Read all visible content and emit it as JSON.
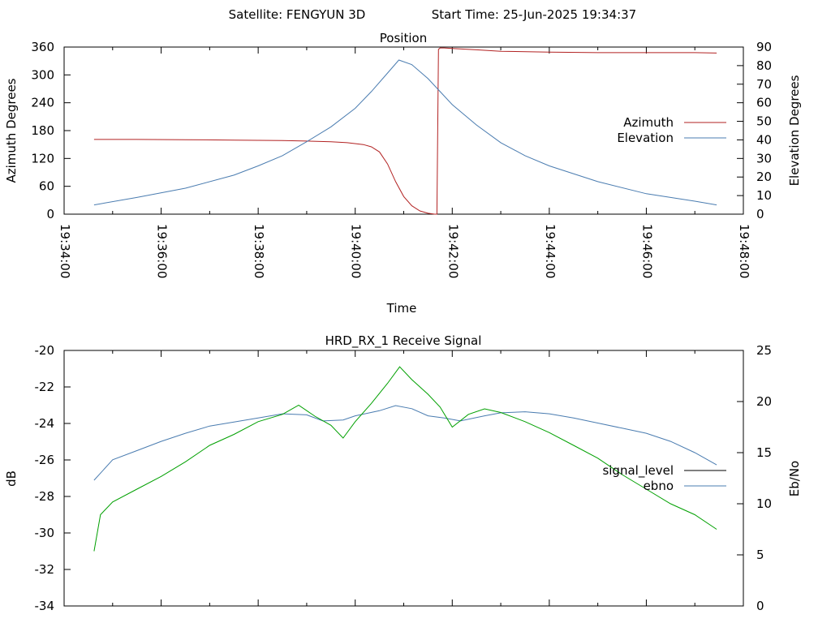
{
  "header": {
    "satellite_label": "Satellite: FENGYUN 3D",
    "start_time_label": "Start Time: 25-Jun-2025 19:34:37"
  },
  "chart_data": [
    {
      "type": "line",
      "title": "Position",
      "xlabel": "Time",
      "ylabel": "Azimuth Degrees",
      "y2label": "Elevation Degrees",
      "xlim": [
        "19:34:00",
        "19:48:00"
      ],
      "ylim": [
        0,
        360
      ],
      "y2lim": [
        0,
        90
      ],
      "grid": false,
      "legend_position": "right",
      "x_ticks": [
        "19:34:00",
        "19:36:00",
        "19:38:00",
        "19:40:00",
        "19:42:00",
        "19:44:00",
        "19:46:00",
        "19:48:00"
      ],
      "y_ticks": [
        0,
        60,
        120,
        180,
        240,
        300,
        360
      ],
      "y2_ticks": [
        0,
        10,
        20,
        30,
        40,
        50,
        60,
        70,
        80,
        90
      ],
      "series": [
        {
          "name": "Azimuth",
          "axis": "y",
          "color": "#b22222",
          "x": [
            "19:34:37",
            "19:35:30",
            "19:36:30",
            "19:37:30",
            "19:38:30",
            "19:39:00",
            "19:39:30",
            "19:39:50",
            "19:40:10",
            "19:40:20",
            "19:40:30",
            "19:40:40",
            "19:40:50",
            "19:41:00",
            "19:41:10",
            "19:41:20",
            "19:41:30",
            "19:41:38",
            "19:41:41",
            "19:41:43",
            "19:41:45",
            "19:41:50",
            "19:42:00",
            "19:42:30",
            "19:43:00",
            "19:44:00",
            "19:45:00",
            "19:46:00",
            "19:47:00",
            "19:47:27"
          ],
          "y": [
            161,
            161,
            160.5,
            159.5,
            158.5,
            157.5,
            156,
            154,
            150,
            145,
            134,
            108,
            70,
            38,
            18,
            7,
            2,
            0,
            0,
            355,
            358,
            358,
            357,
            354,
            351,
            349,
            348,
            348,
            348,
            347
          ]
        },
        {
          "name": "Elevation",
          "axis": "y2",
          "color": "#4a7cb0",
          "x": [
            "19:34:37",
            "19:35:30",
            "19:36:30",
            "19:37:30",
            "19:38:00",
            "19:38:30",
            "19:39:00",
            "19:39:30",
            "19:40:00",
            "19:40:20",
            "19:40:40",
            "19:40:54",
            "19:41:10",
            "19:41:30",
            "19:41:45",
            "19:42:00",
            "19:42:30",
            "19:43:00",
            "19:43:30",
            "19:44:00",
            "19:45:00",
            "19:46:00",
            "19:47:00",
            "19:47:27"
          ],
          "y": [
            5,
            9,
            14,
            21,
            26,
            31.5,
            39,
            47,
            57,
            66,
            76,
            83,
            80.5,
            73,
            66,
            59,
            48,
            38.5,
            31.5,
            26,
            17.5,
            11,
            7,
            5
          ]
        }
      ]
    },
    {
      "type": "line",
      "title": "HRD_RX_1 Receive Signal",
      "xlabel": "",
      "ylabel": "dB",
      "y2label": "Eb/No",
      "xlim": [
        "19:34:00",
        "19:48:00"
      ],
      "ylim": [
        -34,
        -20
      ],
      "y2lim": [
        0,
        25
      ],
      "grid": false,
      "legend_position": "right",
      "y_ticks": [
        -34,
        -32,
        -30,
        -28,
        -26,
        -24,
        -22,
        -20
      ],
      "y2_ticks": [
        0,
        5,
        10,
        15,
        20,
        25
      ],
      "series": [
        {
          "name": "signal_level",
          "axis": "y",
          "color": "#000000",
          "legend_only": true,
          "x": [],
          "y": []
        },
        {
          "name": "ebno",
          "axis": "y2",
          "color": "#4a7cb0",
          "x": [
            "19:34:37",
            "19:35:00",
            "19:35:30",
            "19:36:00",
            "19:36:30",
            "19:37:00",
            "19:37:30",
            "19:38:00",
            "19:38:30",
            "19:39:00",
            "19:39:20",
            "19:39:45",
            "19:40:00",
            "19:40:30",
            "19:40:50",
            "19:41:10",
            "19:41:30",
            "19:41:50",
            "19:42:10",
            "19:42:40",
            "19:43:00",
            "19:43:30",
            "19:44:00",
            "19:44:30",
            "19:45:00",
            "19:45:30",
            "19:46:00",
            "19:46:30",
            "19:47:00",
            "19:47:27"
          ],
          "y": [
            12.3,
            14.3,
            15.2,
            16.1,
            16.9,
            17.6,
            18.0,
            18.4,
            18.8,
            18.7,
            18.1,
            18.2,
            18.6,
            19.1,
            19.6,
            19.3,
            18.6,
            18.4,
            18.1,
            18.6,
            18.9,
            19.0,
            18.8,
            18.4,
            17.9,
            17.4,
            16.9,
            16.1,
            15.0,
            13.8
          ]
        },
        {
          "name": "signal_level (green)",
          "axis": "y",
          "color": "#00a000",
          "x": [
            "19:34:37",
            "19:34:45",
            "19:35:00",
            "19:35:30",
            "19:36:00",
            "19:36:30",
            "19:37:00",
            "19:37:30",
            "19:38:00",
            "19:38:30",
            "19:38:50",
            "19:39:10",
            "19:39:30",
            "19:39:45",
            "19:40:00",
            "19:40:20",
            "19:40:40",
            "19:40:55",
            "19:41:10",
            "19:41:30",
            "19:41:45",
            "19:42:00",
            "19:42:20",
            "19:42:40",
            "19:43:00",
            "19:43:30",
            "19:44:00",
            "19:44:30",
            "19:45:00",
            "19:45:30",
            "19:46:00",
            "19:46:30",
            "19:47:00",
            "19:47:27"
          ],
          "y": [
            -31,
            -29,
            -28.3,
            -27.6,
            -26.9,
            -26.1,
            -25.2,
            -24.6,
            -23.9,
            -23.5,
            -23.0,
            -23.6,
            -24.1,
            -24.8,
            -23.9,
            -22.9,
            -21.8,
            -20.9,
            -21.6,
            -22.4,
            -23.1,
            -24.2,
            -23.5,
            -23.2,
            -23.4,
            -23.9,
            -24.5,
            -25.2,
            -25.9,
            -26.8,
            -27.6,
            -28.4,
            -29.0,
            -29.8
          ]
        }
      ]
    }
  ]
}
